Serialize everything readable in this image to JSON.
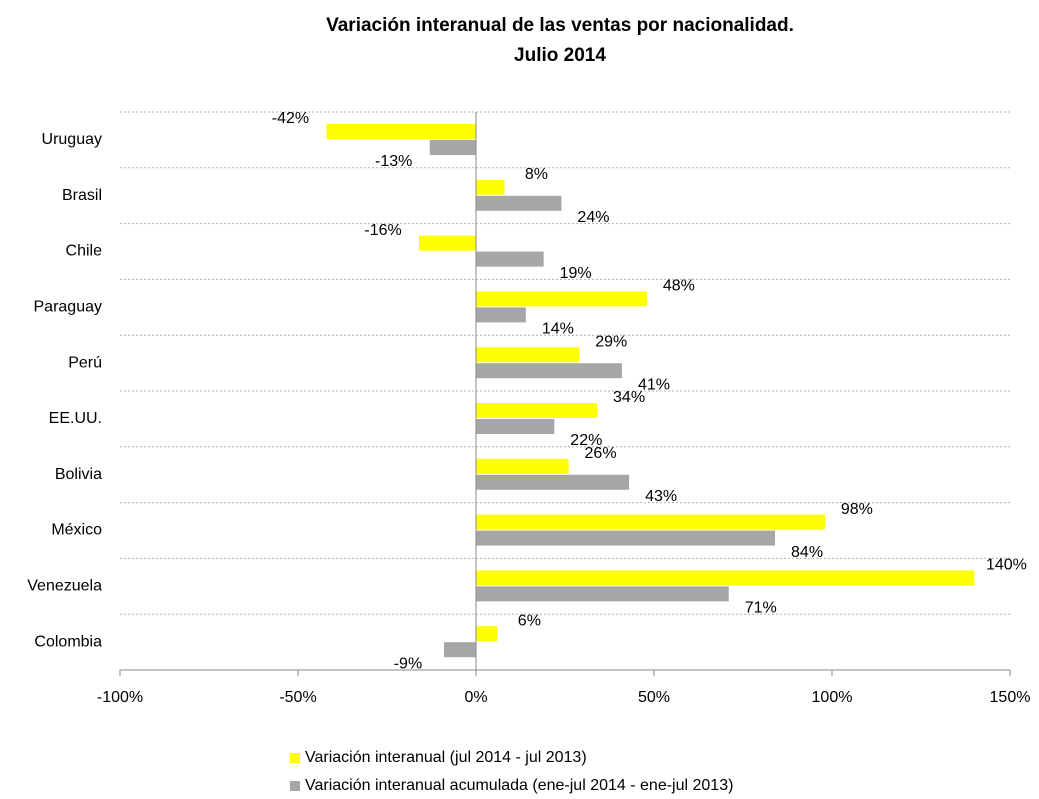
{
  "chart_data": {
    "type": "hbar",
    "title": "Variación interanual de las ventas por nacionalidad.",
    "subtitle": "Julio 2014",
    "categories": [
      "Uruguay",
      "Brasil",
      "Chile",
      "Paraguay",
      "Perú",
      "EE.UU.",
      "Bolivia",
      "México",
      "Venezuela",
      "Colombia"
    ],
    "series": [
      {
        "name": "Variación interanual (jul 2014 - jul 2013)",
        "color": "#ffff00",
        "values": [
          -42,
          8,
          -16,
          48,
          29,
          34,
          26,
          98,
          140,
          6
        ],
        "value_labels": [
          "-42%",
          "8%",
          "-16%",
          "48%",
          "29%",
          "34%",
          "26%",
          "98%",
          "140%",
          "6%"
        ]
      },
      {
        "name": "Variación interanual acumulada (ene-jul 2014 - ene-jul 2013)",
        "color": "#a6a6a6",
        "values": [
          -13,
          24,
          19,
          14,
          41,
          22,
          43,
          84,
          71,
          -9
        ],
        "value_labels": [
          "-13%",
          "24%",
          "19%",
          "14%",
          "41%",
          "22%",
          "43%",
          "84%",
          "71%",
          "-9%"
        ]
      }
    ],
    "xlim": [
      -100,
      150
    ],
    "xticks": [
      {
        "value": -100,
        "label": "-100%"
      },
      {
        "value": -50,
        "label": "-50%"
      },
      {
        "value": 0,
        "label": "0%"
      },
      {
        "value": 50,
        "label": "50%"
      },
      {
        "value": 100,
        "label": "100%"
      },
      {
        "value": 150,
        "label": "150%"
      }
    ],
    "grid": true,
    "legend": "bottom"
  }
}
